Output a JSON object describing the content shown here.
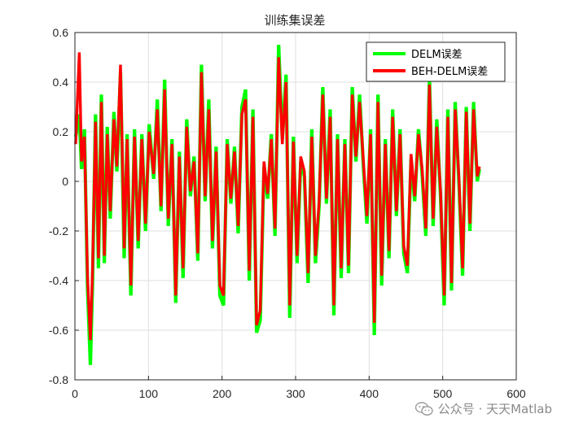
{
  "chart_data": {
    "type": "line",
    "title": "训练集误差",
    "xlabel": "",
    "ylabel": "",
    "xlim": [
      0,
      600
    ],
    "ylim": [
      -0.8,
      0.6
    ],
    "xticks": [
      "0",
      "100",
      "200",
      "300",
      "400",
      "500",
      "600"
    ],
    "yticks": [
      "-0.8",
      "-0.6",
      "-0.4",
      "-0.2",
      "0",
      "0.2",
      "0.4",
      "0.6"
    ],
    "grid": true,
    "legend_position": "top-right",
    "series": [
      {
        "name": "DELM误差",
        "color": "#00ff00",
        "x": [
          1,
          6,
          9,
          13,
          17,
          21,
          24,
          28,
          32,
          36,
          40,
          44,
          48,
          53,
          57,
          62,
          67,
          71,
          76,
          81,
          86,
          91,
          96,
          101,
          107,
          112,
          117,
          122,
          127,
          132,
          137,
          142,
          147,
          152,
          157,
          162,
          167,
          172,
          177,
          182,
          187,
          192,
          197,
          202,
          207,
          212,
          217,
          222,
          227,
          232,
          237,
          242,
          247,
          252,
          257,
          262,
          267,
          272,
          277,
          282,
          287,
          292,
          297,
          302,
          307,
          312,
          317,
          322,
          327,
          332,
          337,
          342,
          347,
          352,
          357,
          362,
          367,
          372,
          377,
          382,
          387,
          392,
          397,
          402,
          407,
          412,
          417,
          422,
          427,
          432,
          437,
          442,
          447,
          452,
          457,
          462,
          467,
          472,
          477,
          482,
          487,
          492,
          497,
          502,
          507,
          512,
          517,
          522,
          527,
          532,
          537,
          542,
          547,
          550
        ],
        "y": [
          0.18,
          0.27,
          0.05,
          0.21,
          -0.42,
          -0.74,
          -0.4,
          0.27,
          -0.35,
          0.35,
          -0.33,
          0.22,
          -0.15,
          0.28,
          0.04,
          0.44,
          -0.31,
          0.19,
          -0.46,
          0.21,
          -0.27,
          0.19,
          -0.2,
          0.23,
          0.01,
          0.33,
          -0.12,
          0.41,
          -0.18,
          0.17,
          -0.49,
          0.12,
          -0.39,
          0.25,
          -0.06,
          0.1,
          -0.32,
          0.47,
          -0.08,
          0.33,
          -0.27,
          0.14,
          -0.46,
          -0.5,
          0.17,
          -0.09,
          0.14,
          -0.21,
          0.3,
          0.37,
          -0.4,
          0.29,
          -0.61,
          -0.56,
          0.06,
          -0.07,
          0.19,
          -0.22,
          0.55,
          0.17,
          0.43,
          -0.55,
          0.18,
          -0.33,
          0.08,
          0.02,
          -0.41,
          0.21,
          -0.33,
          -0.1,
          0.38,
          -0.09,
          0.29,
          -0.54,
          0.19,
          -0.39,
          0.17,
          -0.37,
          0.38,
          0.08,
          0.35,
          0.07,
          -0.17,
          0.21,
          -0.62,
          0.35,
          -0.42,
          0.17,
          -0.31,
          0.29,
          -0.14,
          0.21,
          -0.29,
          -0.37,
          0.09,
          -0.08,
          0.21,
          0.03,
          -0.22,
          0.42,
          -0.18,
          0.25,
          -0.06,
          -0.5,
          0.29,
          -0.44,
          0.32,
          0.0,
          -0.38,
          0.3,
          -0.2,
          0.32,
          0.0,
          0.05
        ]
      },
      {
        "name": "BEH-DELM误差",
        "color": "#ff0000",
        "x": [
          1,
          6,
          9,
          13,
          17,
          21,
          24,
          28,
          32,
          36,
          40,
          44,
          48,
          53,
          57,
          62,
          67,
          71,
          76,
          81,
          86,
          91,
          96,
          101,
          107,
          112,
          117,
          122,
          127,
          132,
          137,
          142,
          147,
          152,
          157,
          162,
          167,
          172,
          177,
          182,
          187,
          192,
          197,
          202,
          207,
          212,
          217,
          222,
          227,
          232,
          237,
          242,
          247,
          252,
          257,
          262,
          267,
          272,
          277,
          282,
          287,
          292,
          297,
          302,
          307,
          312,
          317,
          322,
          327,
          332,
          337,
          342,
          347,
          352,
          357,
          362,
          367,
          372,
          377,
          382,
          387,
          392,
          397,
          402,
          407,
          412,
          417,
          422,
          427,
          432,
          437,
          442,
          447,
          452,
          457,
          462,
          467,
          472,
          477,
          482,
          487,
          492,
          497,
          502,
          507,
          512,
          517,
          522,
          527,
          532,
          537,
          542,
          547,
          550
        ],
        "y": [
          0.15,
          0.52,
          0.08,
          0.18,
          -0.38,
          -0.64,
          -0.35,
          0.24,
          -0.31,
          0.32,
          -0.3,
          0.19,
          -0.12,
          0.25,
          0.06,
          0.47,
          -0.27,
          0.17,
          -0.42,
          0.18,
          -0.24,
          0.17,
          -0.17,
          0.2,
          0.03,
          0.29,
          -0.1,
          0.37,
          -0.15,
          0.15,
          -0.46,
          0.1,
          -0.35,
          0.22,
          -0.04,
          0.08,
          -0.29,
          0.44,
          -0.06,
          0.29,
          -0.24,
          0.12,
          -0.42,
          -0.46,
          0.15,
          -0.07,
          0.12,
          -0.18,
          0.27,
          0.33,
          -0.36,
          0.26,
          -0.58,
          -0.52,
          0.08,
          -0.05,
          0.17,
          -0.19,
          0.5,
          0.15,
          0.4,
          -0.5,
          0.16,
          -0.3,
          0.1,
          0.04,
          -0.37,
          0.18,
          -0.3,
          -0.08,
          0.35,
          -0.07,
          0.26,
          -0.5,
          0.17,
          -0.35,
          0.15,
          -0.34,
          0.35,
          0.1,
          0.32,
          0.09,
          -0.14,
          0.19,
          -0.57,
          0.32,
          -0.38,
          0.15,
          -0.28,
          0.26,
          -0.12,
          0.19,
          -0.26,
          -0.34,
          0.11,
          -0.06,
          0.19,
          0.05,
          -0.19,
          0.39,
          -0.15,
          0.22,
          -0.04,
          -0.46,
          0.26,
          -0.41,
          0.29,
          0.02,
          -0.35,
          0.28,
          -0.17,
          0.29,
          0.02,
          0.06
        ]
      }
    ]
  },
  "watermark": {
    "text": "公众号 · 天天Matlab",
    "icon": "wechat-icon"
  }
}
